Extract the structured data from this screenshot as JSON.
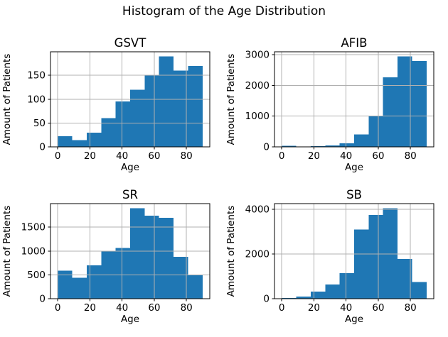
{
  "figure": {
    "suptitle": "Histogram of the Age Distribution"
  },
  "colors": {
    "bar": "#1f77b4",
    "grid": "#b0b0b0",
    "spine": "#000000",
    "text": "#000000",
    "background": "#ffffff"
  },
  "chart_data": [
    {
      "type": "bar",
      "subtype": "histogram",
      "title": "GSVT",
      "xlabel": "Age",
      "ylabel": "Amount of Patients",
      "bin_edges": [
        0,
        9,
        18,
        27,
        36,
        45,
        54,
        63,
        72,
        81,
        90
      ],
      "values": [
        22,
        14,
        30,
        60,
        95,
        120,
        150,
        190,
        160,
        170
      ],
      "x_ticks": [
        0,
        20,
        40,
        60,
        80
      ],
      "y_ticks": [
        0,
        50,
        100,
        150
      ],
      "xlim": [
        -4.5,
        94.5
      ],
      "ylim": [
        0,
        199.5
      ],
      "grid": true
    },
    {
      "type": "bar",
      "subtype": "histogram",
      "title": "AFIB",
      "xlabel": "Age",
      "ylabel": "Amount of Patients",
      "bin_edges": [
        0,
        9,
        18,
        27,
        36,
        45,
        54,
        63,
        72,
        81,
        90
      ],
      "values": [
        35,
        10,
        25,
        50,
        110,
        400,
        1010,
        2270,
        2950,
        2800
      ],
      "x_ticks": [
        0,
        20,
        40,
        60,
        80
      ],
      "y_ticks": [
        0,
        1000,
        2000,
        3000
      ],
      "xlim": [
        -4.5,
        94.5
      ],
      "ylim": [
        0,
        3097.5
      ],
      "grid": true
    },
    {
      "type": "bar",
      "subtype": "histogram",
      "title": "SR",
      "xlabel": "Age",
      "ylabel": "Amount of Patients",
      "bin_edges": [
        0,
        9,
        18,
        27,
        36,
        45,
        54,
        63,
        72,
        81,
        90
      ],
      "values": [
        590,
        440,
        700,
        990,
        1065,
        1900,
        1740,
        1700,
        880,
        500
      ],
      "x_ticks": [
        0,
        20,
        40,
        60,
        80
      ],
      "y_ticks": [
        0,
        500,
        1000,
        1500
      ],
      "xlim": [
        -4.5,
        94.5
      ],
      "ylim": [
        0,
        1995
      ],
      "grid": true
    },
    {
      "type": "bar",
      "subtype": "histogram",
      "title": "SB",
      "xlabel": "Age",
      "ylabel": "Amount of Patients",
      "bin_edges": [
        0,
        9,
        18,
        27,
        36,
        45,
        54,
        63,
        72,
        81,
        90
      ],
      "values": [
        30,
        90,
        310,
        630,
        1150,
        3100,
        3750,
        4050,
        1770,
        740
      ],
      "x_ticks": [
        0,
        20,
        40,
        60,
        80
      ],
      "y_ticks": [
        0,
        2000,
        4000
      ],
      "xlim": [
        -4.5,
        94.5
      ],
      "ylim": [
        0,
        4252.5
      ],
      "grid": true
    }
  ]
}
